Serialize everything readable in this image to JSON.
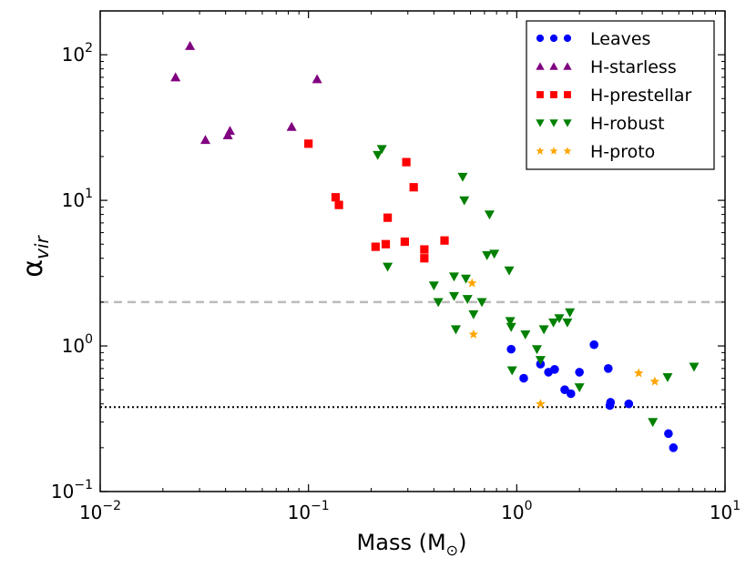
{
  "chart_data": {
    "type": "scatter",
    "xlabel": "Mass (M",
    "xlabel_sub": "⊙",
    "xlabel_close": ")",
    "ylabel": "α",
    "ylabel_sub": "vir",
    "x_scale": "log",
    "y_scale": "log",
    "xlim": [
      0.01,
      10
    ],
    "ylim": [
      0.1,
      200
    ],
    "x_ticks": [
      {
        "value": 0.01,
        "base": "10",
        "exp": "−2"
      },
      {
        "value": 0.1,
        "base": "10",
        "exp": "−1"
      },
      {
        "value": 1,
        "base": "10",
        "exp": "0"
      },
      {
        "value": 10,
        "base": "10",
        "exp": "1"
      }
    ],
    "y_ticks": [
      {
        "value": 0.1,
        "base": "10",
        "exp": "−1"
      },
      {
        "value": 1,
        "base": "10",
        "exp": "0"
      },
      {
        "value": 10,
        "base": "10",
        "exp": "1"
      },
      {
        "value": 100,
        "base": "10",
        "exp": "2"
      }
    ],
    "grid": false,
    "legend_position": "top-right",
    "reference_lines": [
      {
        "y": 2.0,
        "style": "dashed",
        "color": "#bbbbbb"
      },
      {
        "y": 0.38,
        "style": "dotted",
        "color": "#000000"
      }
    ],
    "series": [
      {
        "name": "Leaves",
        "marker": "circle",
        "color": "#0000ff",
        "points": [
          [
            0.94,
            0.95
          ],
          [
            1.08,
            0.6
          ],
          [
            1.3,
            0.75
          ],
          [
            1.42,
            0.66
          ],
          [
            1.52,
            0.69
          ],
          [
            1.7,
            0.5
          ],
          [
            1.82,
            0.47
          ],
          [
            2.0,
            0.66
          ],
          [
            2.35,
            1.02
          ],
          [
            2.75,
            0.7
          ],
          [
            2.8,
            0.39
          ],
          [
            2.82,
            0.41
          ],
          [
            3.45,
            0.4
          ],
          [
            5.35,
            0.25
          ],
          [
            5.65,
            0.2
          ]
        ]
      },
      {
        "name": "H-starless",
        "marker": "triangle-up",
        "color": "#800080",
        "points": [
          [
            0.023,
            70
          ],
          [
            0.027,
            115
          ],
          [
            0.032,
            26
          ],
          [
            0.041,
            28
          ],
          [
            0.042,
            30
          ],
          [
            0.083,
            32
          ],
          [
            0.11,
            68
          ]
        ]
      },
      {
        "name": "H-prestellar",
        "marker": "square",
        "color": "#ff0000",
        "points": [
          [
            0.1,
            24.5
          ],
          [
            0.135,
            10.5
          ],
          [
            0.14,
            9.3
          ],
          [
            0.21,
            4.8
          ],
          [
            0.235,
            5.0
          ],
          [
            0.24,
            7.6
          ],
          [
            0.29,
            5.2
          ],
          [
            0.295,
            18.3
          ],
          [
            0.32,
            12.3
          ],
          [
            0.36,
            4.6
          ],
          [
            0.36,
            4.0
          ],
          [
            0.45,
            5.3
          ]
        ]
      },
      {
        "name": "H-robust",
        "marker": "triangle-down",
        "color": "#008000",
        "points": [
          [
            0.215,
            20.5
          ],
          [
            0.225,
            22.5
          ],
          [
            0.24,
            3.5
          ],
          [
            0.4,
            2.6
          ],
          [
            0.42,
            2.0
          ],
          [
            0.5,
            3.0
          ],
          [
            0.5,
            2.2
          ],
          [
            0.51,
            1.3
          ],
          [
            0.55,
            14.5
          ],
          [
            0.56,
            10.0
          ],
          [
            0.57,
            2.9
          ],
          [
            0.58,
            2.1
          ],
          [
            0.62,
            1.65
          ],
          [
            0.68,
            2.0
          ],
          [
            0.72,
            4.2
          ],
          [
            0.74,
            8.0
          ],
          [
            0.78,
            4.3
          ],
          [
            0.92,
            3.3
          ],
          [
            0.93,
            1.48
          ],
          [
            0.94,
            1.35
          ],
          [
            0.95,
            0.68
          ],
          [
            1.1,
            1.2
          ],
          [
            1.25,
            0.95
          ],
          [
            1.3,
            0.8
          ],
          [
            1.35,
            1.3
          ],
          [
            1.5,
            1.45
          ],
          [
            1.6,
            1.55
          ],
          [
            1.75,
            1.45
          ],
          [
            1.8,
            1.7
          ],
          [
            2.0,
            0.52
          ],
          [
            4.5,
            0.3
          ],
          [
            5.3,
            0.61
          ],
          [
            7.1,
            0.72
          ]
        ]
      },
      {
        "name": "H-proto",
        "marker": "star",
        "color": "#ffa500",
        "points": [
          [
            0.61,
            2.7
          ],
          [
            0.62,
            1.2
          ],
          [
            1.3,
            0.4
          ],
          [
            3.85,
            0.65
          ],
          [
            4.6,
            0.57
          ]
        ]
      }
    ]
  }
}
